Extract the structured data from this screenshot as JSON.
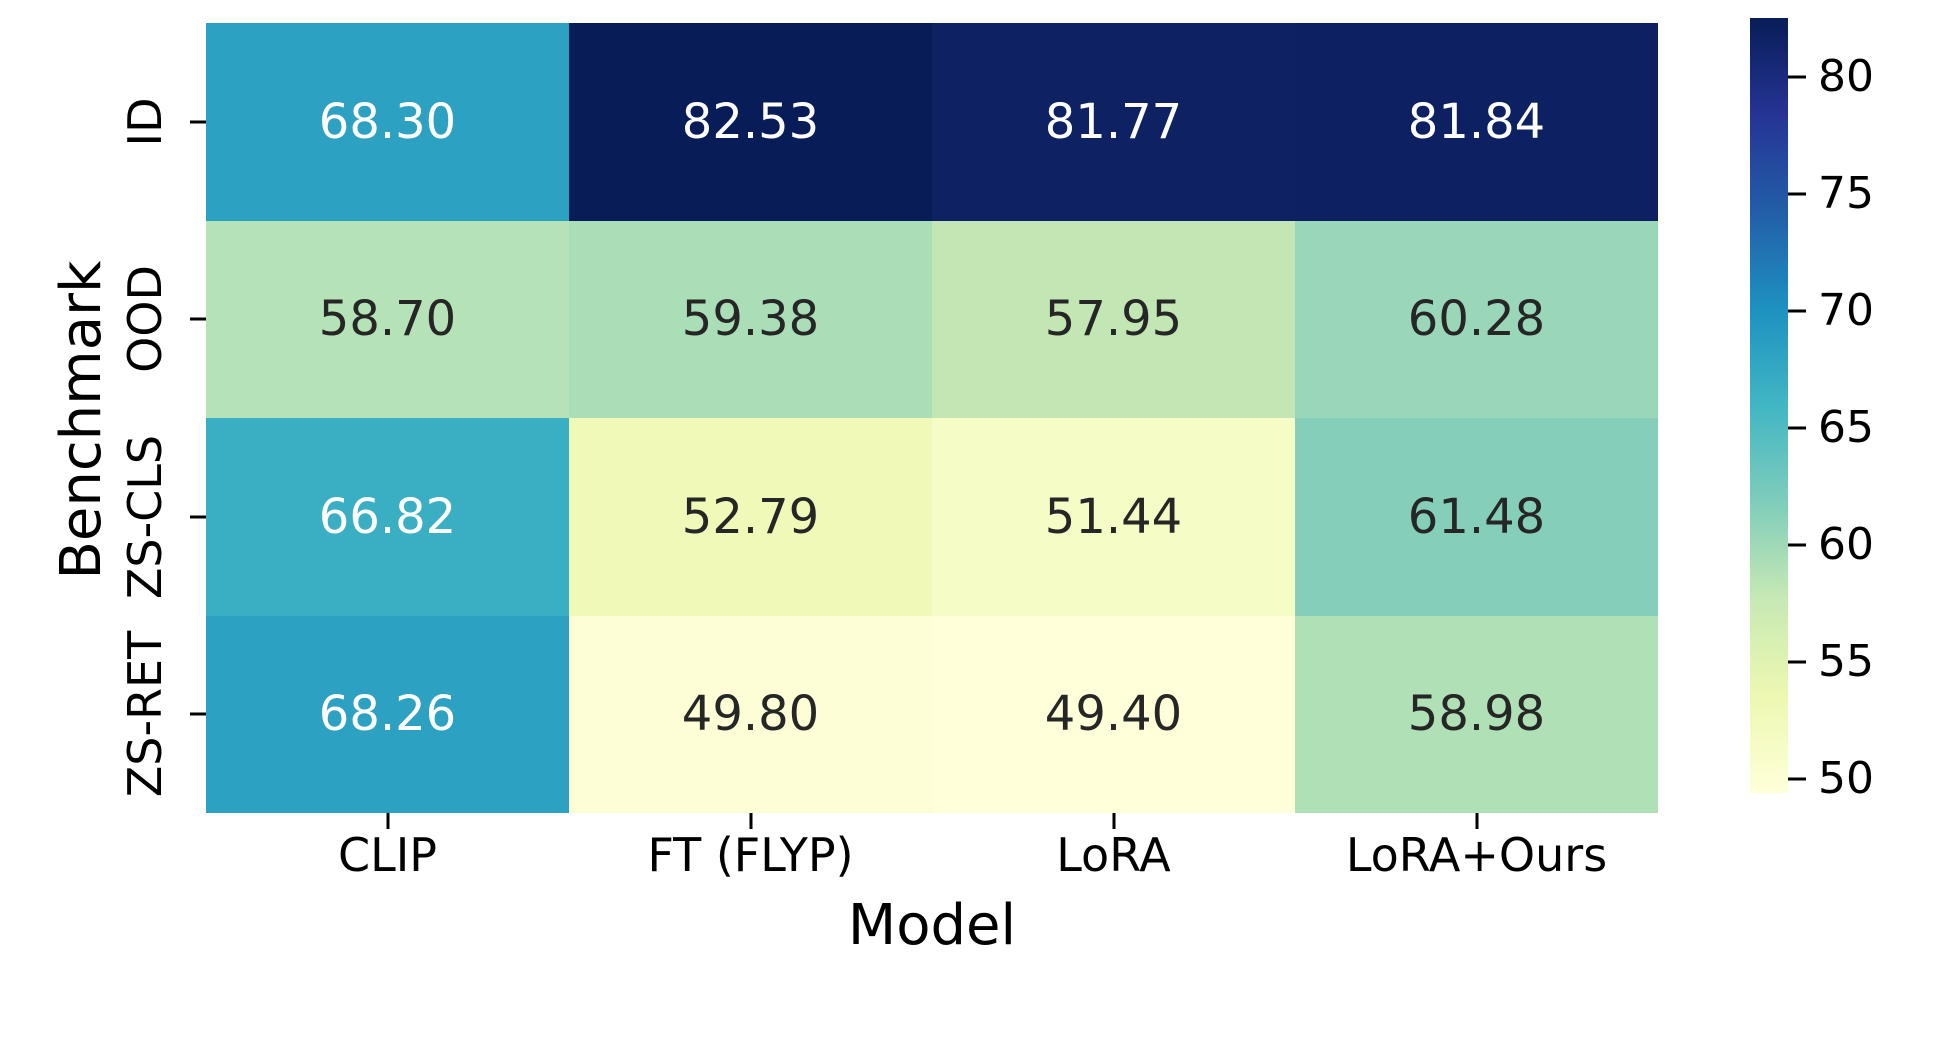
{
  "chart_data": {
    "type": "heatmap",
    "xlabel": "Model",
    "ylabel": "Benchmark",
    "columns": [
      "CLIP",
      "FT (FLYP)",
      "LoRA",
      "LoRA+Ours"
    ],
    "rows": [
      "ID",
      "OOD",
      "ZS-CLS",
      "ZS-RET"
    ],
    "values": [
      [
        68.3,
        82.53,
        81.77,
        81.84
      ],
      [
        58.7,
        59.38,
        57.95,
        60.28
      ],
      [
        66.82,
        52.79,
        51.44,
        61.48
      ],
      [
        68.26,
        49.8,
        49.4,
        58.98
      ]
    ],
    "value_decimals": 2,
    "vmin": 49.4,
    "vmax": 82.53,
    "colormap_name": "YlGnBu",
    "colormap_stops": [
      "#ffffd9",
      "#edf8b1",
      "#c7e9b4",
      "#7fcdbb",
      "#41b6c4",
      "#1d91c0",
      "#225ea8",
      "#253494",
      "#081d58"
    ],
    "colorbar_ticks": [
      50,
      55,
      60,
      65,
      70,
      75,
      80
    ],
    "annot_color_light": "#ffffff",
    "annot_color_dark": "#262626",
    "background_color": "#ffffff",
    "legend": "colorbar-right",
    "grid": false
  }
}
